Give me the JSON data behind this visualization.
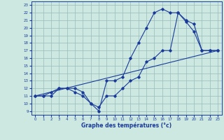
{
  "xlabel": "Graphe des températures (°c)",
  "bg_color": "#cce8e0",
  "grid_color": "#99bbbb",
  "line_color": "#1a3a9a",
  "xlim": [
    -0.5,
    23.5
  ],
  "ylim": [
    8.5,
    23.5
  ],
  "xticks": [
    0,
    1,
    2,
    3,
    4,
    5,
    6,
    7,
    8,
    9,
    10,
    11,
    12,
    13,
    14,
    15,
    16,
    17,
    18,
    19,
    20,
    21,
    22,
    23
  ],
  "yticks": [
    9,
    10,
    11,
    12,
    13,
    14,
    15,
    16,
    17,
    18,
    19,
    20,
    21,
    22,
    23
  ],
  "line1_x": [
    0,
    1,
    2,
    3,
    4,
    5,
    6,
    7,
    8,
    9,
    10,
    11,
    12,
    13,
    14,
    15,
    16,
    17,
    18,
    19,
    20,
    21,
    22,
    23
  ],
  "line1_y": [
    11,
    11,
    11.5,
    12,
    12,
    11.5,
    11,
    10,
    9,
    13,
    13,
    13.5,
    16,
    18,
    20,
    22,
    22.5,
    22,
    22,
    20.8,
    19.5,
    17,
    17,
    17
  ],
  "line2_x": [
    0,
    1,
    2,
    3,
    4,
    5,
    6,
    7,
    8,
    9,
    10,
    11,
    12,
    13,
    14,
    15,
    16,
    17,
    18,
    19,
    20,
    21,
    22,
    23
  ],
  "line2_y": [
    11,
    11,
    11,
    12,
    12,
    12,
    11.5,
    10,
    9.5,
    11,
    11,
    12,
    13,
    13.5,
    15.5,
    16,
    17,
    17,
    22,
    21,
    20.5,
    17,
    17,
    17
  ],
  "line3_x": [
    0,
    23
  ],
  "line3_y": [
    11,
    17
  ]
}
